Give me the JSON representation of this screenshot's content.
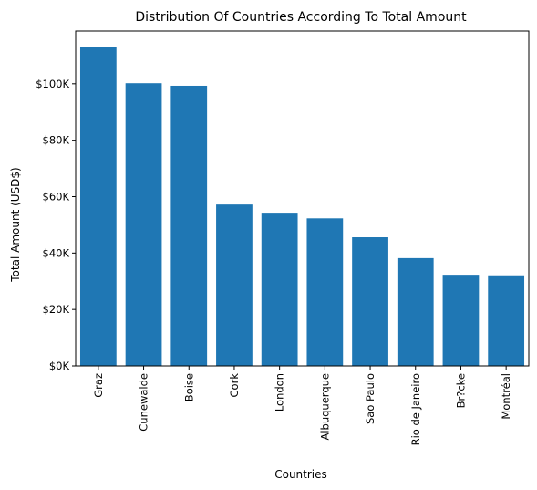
{
  "chart_data": {
    "type": "bar",
    "title": "Distribution Of Countries According To Total Amount",
    "xlabel": "Countries",
    "ylabel": "Total Amount (USD$)",
    "categories": [
      "Graz",
      "Cunewalde",
      "Boise",
      "Cork",
      "London",
      "Albuquerque",
      "Sao Paulo",
      "Rio de Janeiro",
      "Br?cke",
      "Montréal"
    ],
    "values": [
      113000,
      100200,
      99300,
      57200,
      54300,
      52300,
      45600,
      38200,
      32300,
      32100
    ],
    "ylim": [
      0,
      118700
    ],
    "yticks": [
      0,
      20000,
      40000,
      60000,
      80000,
      100000
    ],
    "ytick_labels": [
      "$0K",
      "$20K",
      "$40K",
      "$60K",
      "$80K",
      "$100K"
    ],
    "bar_color": "#1f77b4",
    "grid": false,
    "legend": false
  }
}
